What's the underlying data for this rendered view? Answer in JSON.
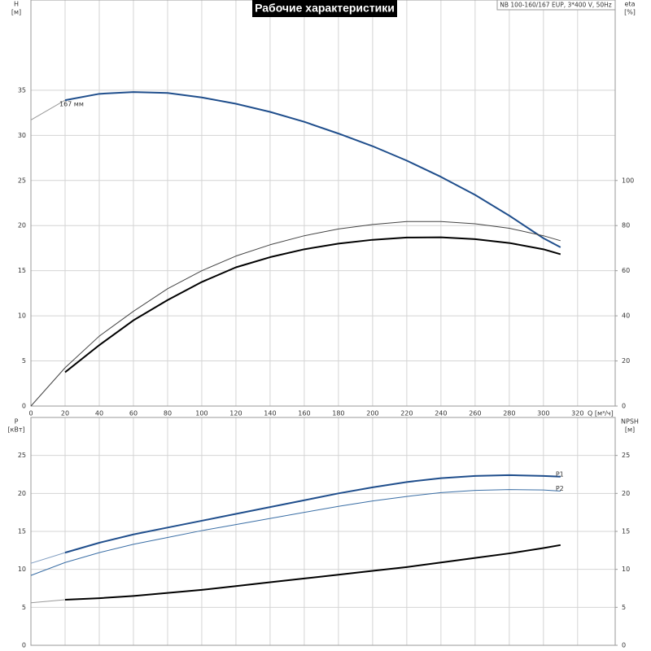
{
  "chart_data": [
    {
      "type": "line",
      "title": "Рабочие характеристики",
      "model": "NB 100-160/167 EUP, 3*400 V, 50Hz",
      "ylabel": "H",
      "yunit": "[м]",
      "y2label": "eta",
      "y2unit": "[%]",
      "xlabel": "Q [м³/ч]",
      "xlim": [
        0,
        342
      ],
      "xticks": [
        0,
        20,
        40,
        60,
        80,
        100,
        120,
        140,
        160,
        180,
        200,
        220,
        240,
        260,
        280,
        300,
        320
      ],
      "ylim": [
        0,
        45
      ],
      "yticks": [
        0,
        5,
        10,
        15,
        20,
        25,
        30,
        35
      ],
      "y2lim": [
        0,
        180
      ],
      "y2ticks": [
        0,
        20,
        40,
        60,
        80,
        100
      ],
      "grid": true,
      "xtick_labels": true,
      "series": [
        {
          "color": "#999999",
          "width": 1,
          "x": [
            0,
            20
          ],
          "values": [
            31.7,
            33.9
          ]
        },
        {
          "label": "167 мм",
          "color": "#1f4e8c",
          "width": 2,
          "x": [
            20,
            40,
            60,
            80,
            100,
            120,
            140,
            160,
            180,
            200,
            220,
            240,
            260,
            280,
            300,
            310
          ],
          "values": [
            33.9,
            34.6,
            34.8,
            34.7,
            34.2,
            33.5,
            32.6,
            31.5,
            30.2,
            28.8,
            27.2,
            25.4,
            23.4,
            21.1,
            18.6,
            17.6
          ]
        },
        {
          "axis": "y2",
          "color": "#444444",
          "width": 1,
          "x": [
            0,
            20,
            40,
            60,
            80,
            100,
            120,
            140,
            160,
            180,
            200,
            220,
            240,
            260,
            280,
            300,
            310
          ],
          "values": [
            0,
            17,
            31,
            42,
            52,
            60,
            66.5,
            71.5,
            75.5,
            78.5,
            80.5,
            81.8,
            81.8,
            80.8,
            78.8,
            75.5,
            73.3
          ]
        },
        {
          "axis": "y2",
          "color": "#000000",
          "width": 2,
          "x": [
            20,
            40,
            60,
            80,
            100,
            120,
            140,
            160,
            180,
            200,
            220,
            240,
            260,
            280,
            300,
            310
          ],
          "values": [
            15,
            27,
            38,
            47,
            55,
            61.5,
            66,
            69.5,
            72,
            73.7,
            74.7,
            74.8,
            74,
            72.3,
            69.5,
            67.3
          ]
        }
      ]
    },
    {
      "type": "line",
      "ylabel": "P",
      "yunit": "[кВт]",
      "y2label": "NPSH",
      "y2unit": "[м]",
      "xlim": [
        0,
        342
      ],
      "xticks": [
        0,
        20,
        40,
        60,
        80,
        100,
        120,
        140,
        160,
        180,
        200,
        220,
        240,
        260,
        280,
        300,
        320
      ],
      "ylim": [
        0,
        30
      ],
      "yticks": [
        0,
        5,
        10,
        15,
        20,
        25
      ],
      "y2lim": [
        0,
        30
      ],
      "y2ticks": [
        0,
        5,
        10,
        15,
        20,
        25
      ],
      "grid": true,
      "xtick_labels": false,
      "series": [
        {
          "color": "#7f9cc0",
          "width": 1,
          "x": [
            0,
            20
          ],
          "values": [
            10.8,
            12.2
          ]
        },
        {
          "label": "P1",
          "color": "#1f4e8c",
          "width": 2,
          "x": [
            20,
            40,
            60,
            80,
            100,
            120,
            140,
            160,
            180,
            200,
            220,
            240,
            260,
            280,
            300,
            310
          ],
          "values": [
            12.2,
            13.5,
            14.6,
            15.5,
            16.4,
            17.3,
            18.2,
            19.1,
            20.0,
            20.8,
            21.5,
            22.0,
            22.3,
            22.4,
            22.3,
            22.2
          ]
        },
        {
          "label": "P2",
          "color": "#3a6ea5",
          "width": 1,
          "x": [
            0,
            20,
            40,
            60,
            80,
            100,
            120,
            140,
            160,
            180,
            200,
            220,
            240,
            260,
            280,
            300,
            310
          ],
          "values": [
            9.2,
            10.9,
            12.2,
            13.3,
            14.2,
            15.1,
            15.9,
            16.7,
            17.5,
            18.3,
            19.0,
            19.6,
            20.1,
            20.4,
            20.5,
            20.45,
            20.3
          ]
        },
        {
          "axis": "y2",
          "color": "#999999",
          "width": 1,
          "x": [
            0,
            20
          ],
          "values": [
            5.6,
            6.0
          ]
        },
        {
          "axis": "y2",
          "color": "#000000",
          "width": 2,
          "x": [
            20,
            40,
            60,
            80,
            100,
            120,
            140,
            160,
            180,
            200,
            220,
            240,
            260,
            280,
            300,
            310
          ],
          "values": [
            6.0,
            6.2,
            6.5,
            6.9,
            7.3,
            7.8,
            8.3,
            8.8,
            9.3,
            9.8,
            10.3,
            10.9,
            11.5,
            12.1,
            12.8,
            13.2
          ]
        }
      ]
    }
  ]
}
